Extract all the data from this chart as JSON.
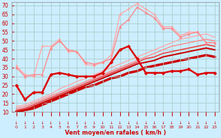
{
  "xlabel": "Vent moyen/en rafales ( km/h )",
  "background_color": "#cceeff",
  "grid_color": "#aacccc",
  "x": [
    0,
    1,
    2,
    3,
    4,
    5,
    6,
    7,
    8,
    9,
    10,
    11,
    12,
    13,
    14,
    15,
    16,
    17,
    18,
    19,
    20,
    21,
    22,
    23
  ],
  "ylim": [
    10,
    72
  ],
  "yticks": [
    10,
    15,
    20,
    25,
    30,
    35,
    40,
    45,
    50,
    55,
    60,
    65,
    70
  ],
  "lines": [
    {
      "values": [
        36,
        31,
        30,
        47,
        47,
        51,
        44,
        44,
        37,
        36,
        38,
        42,
        65,
        68,
        71,
        68,
        65,
        58,
        58,
        53,
        55,
        55,
        49,
        49
      ],
      "color": "#ffaaaa",
      "lw": 1.0,
      "marker": "o",
      "ms": 2.0,
      "zorder": 3
    },
    {
      "values": [
        35,
        30,
        31,
        31,
        46,
        50,
        45,
        44,
        38,
        37,
        38,
        40,
        58,
        62,
        69,
        66,
        63,
        57,
        57,
        52,
        54,
        55,
        49,
        49
      ],
      "color": "#ff8888",
      "lw": 1.0,
      "marker": "^",
      "ms": 2.5,
      "zorder": 4
    },
    {
      "values": [
        25,
        17,
        21,
        21,
        31,
        32,
        31,
        30,
        30,
        30,
        32,
        38,
        45,
        47,
        40,
        32,
        32,
        32,
        33,
        33,
        34,
        31,
        32,
        32
      ],
      "color": "#dd0000",
      "lw": 1.8,
      "marker": "D",
      "ms": 2.5,
      "zorder": 5
    },
    {
      "values": [
        13,
        14,
        16,
        18,
        20,
        23,
        25,
        27,
        29,
        31,
        33,
        35,
        37,
        39,
        41,
        43,
        45,
        47,
        49,
        51,
        52,
        53,
        54,
        52
      ],
      "color": "#ffaaaa",
      "lw": 1.0,
      "marker": null,
      "ms": 0,
      "zorder": 2
    },
    {
      "values": [
        12,
        13,
        15,
        17,
        19,
        21,
        23,
        25,
        27,
        29,
        31,
        33,
        35,
        37,
        39,
        41,
        43,
        45,
        47,
        48,
        49,
        50,
        51,
        50
      ],
      "color": "#ff8888",
      "lw": 1.0,
      "marker": null,
      "ms": 0,
      "zorder": 2
    },
    {
      "values": [
        11,
        12,
        14,
        16,
        18,
        20,
        22,
        24,
        26,
        28,
        30,
        32,
        34,
        36,
        38,
        40,
        41,
        43,
        44,
        45,
        46,
        47,
        48,
        47
      ],
      "color": "#ee4444",
      "lw": 1.2,
      "marker": null,
      "ms": 0,
      "zorder": 2
    },
    {
      "values": [
        10,
        11,
        13,
        15,
        17,
        19,
        21,
        23,
        25,
        27,
        29,
        31,
        33,
        35,
        37,
        38,
        39,
        41,
        42,
        43,
        44,
        45,
        46,
        45
      ],
      "color": "#cc0000",
      "lw": 1.5,
      "marker": null,
      "ms": 0,
      "zorder": 2
    },
    {
      "values": [
        10,
        11,
        12,
        14,
        16,
        18,
        20,
        22,
        24,
        25,
        27,
        29,
        30,
        32,
        33,
        35,
        36,
        37,
        38,
        39,
        40,
        41,
        42,
        41
      ],
      "color": "#cc0000",
      "lw": 2.5,
      "marker": null,
      "ms": 0,
      "zorder": 1
    }
  ],
  "tick_label_color": "#cc0000",
  "axis_label_color": "#cc0000"
}
